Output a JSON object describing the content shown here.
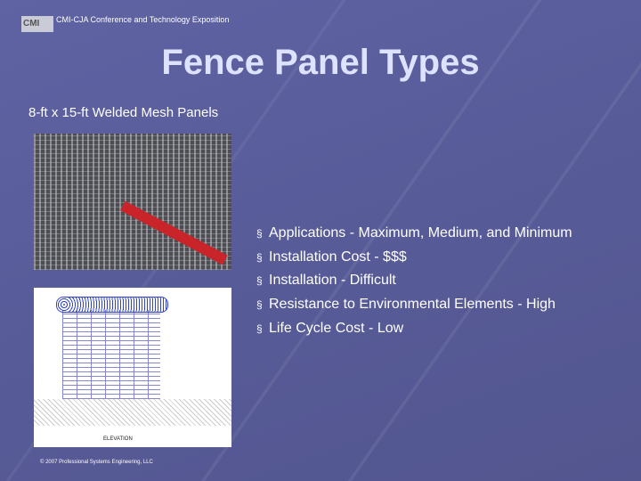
{
  "header": {
    "conference": "CMI-CJA Conference and Technology Exposition",
    "logo_text": "CMI"
  },
  "title": "Fence Panel Types",
  "subtitle": "8-ft x 15-ft Welded Mesh Panels",
  "bullets": [
    "Applications - Maximum, Medium, and Minimum",
    "Installation Cost - $$$",
    "Installation - Difficult",
    "Resistance to Environmental Elements - High",
    "Life Cycle Cost - Low"
  ],
  "bullet_symbol": "§",
  "drawing": {
    "label": "ELEVATION"
  },
  "copyright": "© 2007 Professional Systems Engineering, LLC",
  "colors": {
    "background": "#5a5e9c",
    "title": "#dde3ff"
  }
}
